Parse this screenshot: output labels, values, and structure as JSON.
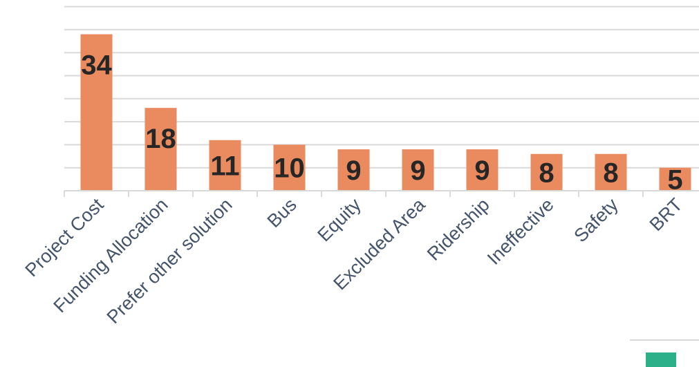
{
  "chart_data": {
    "type": "bar",
    "categories": [
      "Project Cost",
      "Funding Allocation",
      "Prefer other solution",
      "Bus",
      "Equity",
      "Excluded Area",
      "Ridership",
      "Ineffective",
      "Safety",
      "BRT"
    ],
    "values": [
      34,
      18,
      11,
      10,
      9,
      9,
      9,
      8,
      8,
      5
    ],
    "title": "",
    "xlabel": "",
    "ylabel": "",
    "ylim": [
      0,
      40
    ],
    "grid": true,
    "legend": "none",
    "colors": {
      "bar": "#e98a5f",
      "partial_legend_swatch": "#2bb08a"
    }
  }
}
